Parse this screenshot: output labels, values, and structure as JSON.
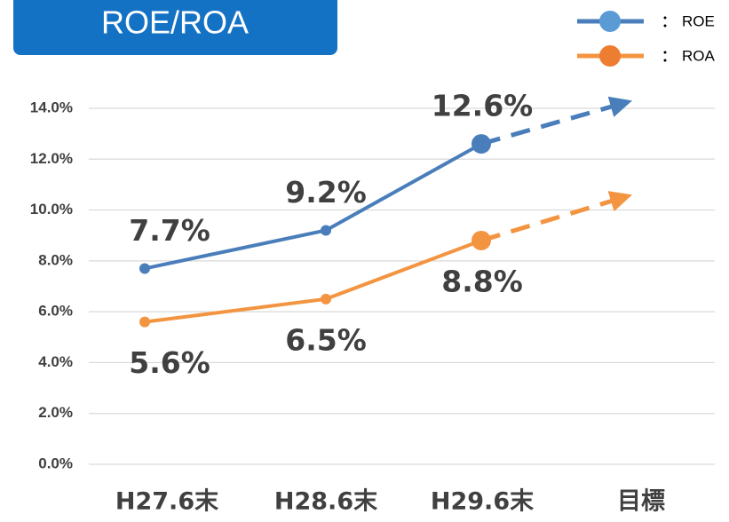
{
  "chart_data": {
    "type": "line",
    "title": "ROE/ROA",
    "categories": [
      "H27.6末",
      "H28.6末",
      "H29.6末",
      "目標"
    ],
    "series": [
      {
        "name": "ROE",
        "color": "#4a7ebb",
        "values": [
          7.7,
          9.2,
          12.6,
          14.3
        ],
        "value_labels": [
          "7.7%",
          "9.2%",
          "12.6%",
          null
        ]
      },
      {
        "name": "ROA",
        "color": "#f39441",
        "values": [
          5.6,
          6.5,
          8.8,
          10.6
        ],
        "value_labels": [
          "5.6%",
          "6.5%",
          "8.8%",
          null
        ]
      }
    ],
    "ylim": [
      0,
      14
    ],
    "yticks": [
      {
        "value": 0,
        "label": "0.0%"
      },
      {
        "value": 2,
        "label": "2.0%"
      },
      {
        "value": 4,
        "label": "4.0%"
      },
      {
        "value": 6,
        "label": "6.0%"
      },
      {
        "value": 8,
        "label": "8.0%"
      },
      {
        "value": 10,
        "label": "10.0%"
      },
      {
        "value": 12,
        "label": "12.0%"
      },
      {
        "value": 14,
        "label": "14.0%"
      }
    ],
    "grid": true,
    "legend": "top right"
  }
}
